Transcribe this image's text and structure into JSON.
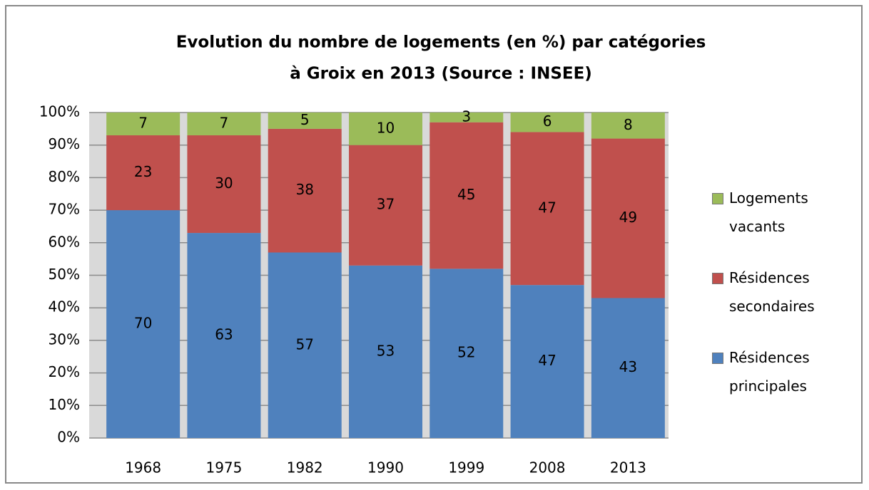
{
  "chart_data": {
    "type": "bar",
    "stacked": true,
    "title": [
      "Evolution du nombre de logements (en %) par catégories",
      "à Groix en 2013 (Source : INSEE)"
    ],
    "categories": [
      "1968",
      "1975",
      "1982",
      "1990",
      "1999",
      "2008",
      "2013"
    ],
    "series": [
      {
        "name": "Résidences principales",
        "color": "#4f81bd",
        "values": [
          70,
          63,
          57,
          53,
          52,
          47,
          43
        ]
      },
      {
        "name": "Résidences secondaires",
        "color": "#c0504d",
        "values": [
          23,
          30,
          38,
          37,
          45,
          47,
          49
        ]
      },
      {
        "name": "Logements vacants",
        "color": "#9bbb59",
        "values": [
          7,
          7,
          5,
          10,
          3,
          6,
          8
        ]
      }
    ],
    "ylim": [
      0,
      100
    ],
    "yticks": [
      {
        "value": 0,
        "label": "0%"
      },
      {
        "value": 10,
        "label": "10%"
      },
      {
        "value": 20,
        "label": "20%"
      },
      {
        "value": 30,
        "label": "30%"
      },
      {
        "value": 40,
        "label": "40%"
      },
      {
        "value": 50,
        "label": "50%"
      },
      {
        "value": 60,
        "label": "60%"
      },
      {
        "value": 70,
        "label": "70%"
      },
      {
        "value": 80,
        "label": "80%"
      },
      {
        "value": 90,
        "label": "90%"
      },
      {
        "value": 100,
        "label": "100%"
      }
    ],
    "grid": true,
    "legend": "right"
  }
}
